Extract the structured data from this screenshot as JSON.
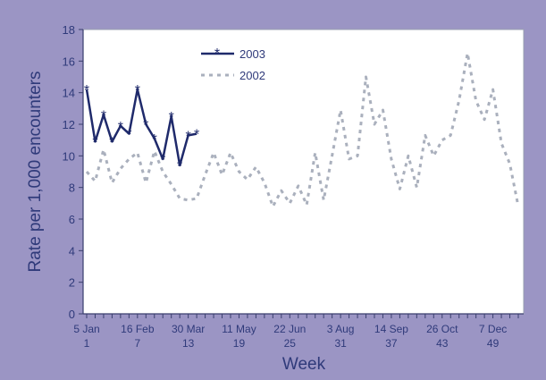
{
  "chart_data": {
    "type": "line",
    "title": "",
    "xlabel": "Week",
    "ylabel": "Rate per 1,000 encounters",
    "ylim": [
      0,
      18
    ],
    "yticks": [
      0,
      2,
      4,
      6,
      8,
      10,
      12,
      14,
      16,
      18
    ],
    "xlim": [
      1,
      52
    ],
    "x_ticks": [
      {
        "week": 1,
        "date": "5 Jan",
        "label": "1"
      },
      {
        "week": 7,
        "date": "16 Feb",
        "label": "7"
      },
      {
        "week": 13,
        "date": "30 Mar",
        "label": "13"
      },
      {
        "week": 19,
        "date": "11 May",
        "label": "19"
      },
      {
        "week": 25,
        "date": "22 Jun",
        "label": "25"
      },
      {
        "week": 31,
        "date": "3 Aug",
        "label": "31"
      },
      {
        "week": 37,
        "date": "14 Sep",
        "label": "37"
      },
      {
        "week": 43,
        "date": "26 Oct",
        "label": "43"
      },
      {
        "week": 49,
        "date": "7 Dec",
        "label": "49"
      }
    ],
    "grid": false,
    "legend": "top-center",
    "background_color": "#9b95c4",
    "plot_background": "#ffffff",
    "series": [
      {
        "name": "2003",
        "style": "solid",
        "marker": "star",
        "color": "#1f2a6b",
        "x": [
          1,
          2,
          3,
          4,
          5,
          6,
          7,
          8,
          9,
          10,
          11,
          12,
          13,
          14
        ],
        "y": [
          14.2,
          10.9,
          12.6,
          10.9,
          11.9,
          11.4,
          14.2,
          12.0,
          11.1,
          9.8,
          12.5,
          9.4,
          11.3,
          11.4
        ]
      },
      {
        "name": "2002",
        "style": "dotted",
        "color": "#aab0bd",
        "x": [
          1,
          2,
          3,
          4,
          5,
          6,
          7,
          8,
          9,
          10,
          11,
          12,
          13,
          14,
          15,
          16,
          17,
          18,
          19,
          20,
          21,
          22,
          23,
          24,
          25,
          26,
          27,
          28,
          29,
          30,
          31,
          32,
          33,
          34,
          35,
          36,
          37,
          38,
          39,
          40,
          41,
          42,
          43,
          44,
          45,
          46,
          47,
          48,
          49,
          50,
          51,
          52
        ],
        "y": [
          9.0,
          8.4,
          10.4,
          8.3,
          9.2,
          9.8,
          10.2,
          8.3,
          10.3,
          9.0,
          8.2,
          7.3,
          7.2,
          7.3,
          8.8,
          10.2,
          8.8,
          10.2,
          9.0,
          8.5,
          9.3,
          8.3,
          6.8,
          7.8,
          7.0,
          8.1,
          6.9,
          10.2,
          7.2,
          10.0,
          12.9,
          9.8,
          10.0,
          15.0,
          12.0,
          12.9,
          9.8,
          7.9,
          10.0,
          8.0,
          11.3,
          10.0,
          11.0,
          11.3,
          13.5,
          16.5,
          13.5,
          12.3,
          14.2,
          10.8,
          9.5,
          6.8
        ]
      }
    ]
  }
}
